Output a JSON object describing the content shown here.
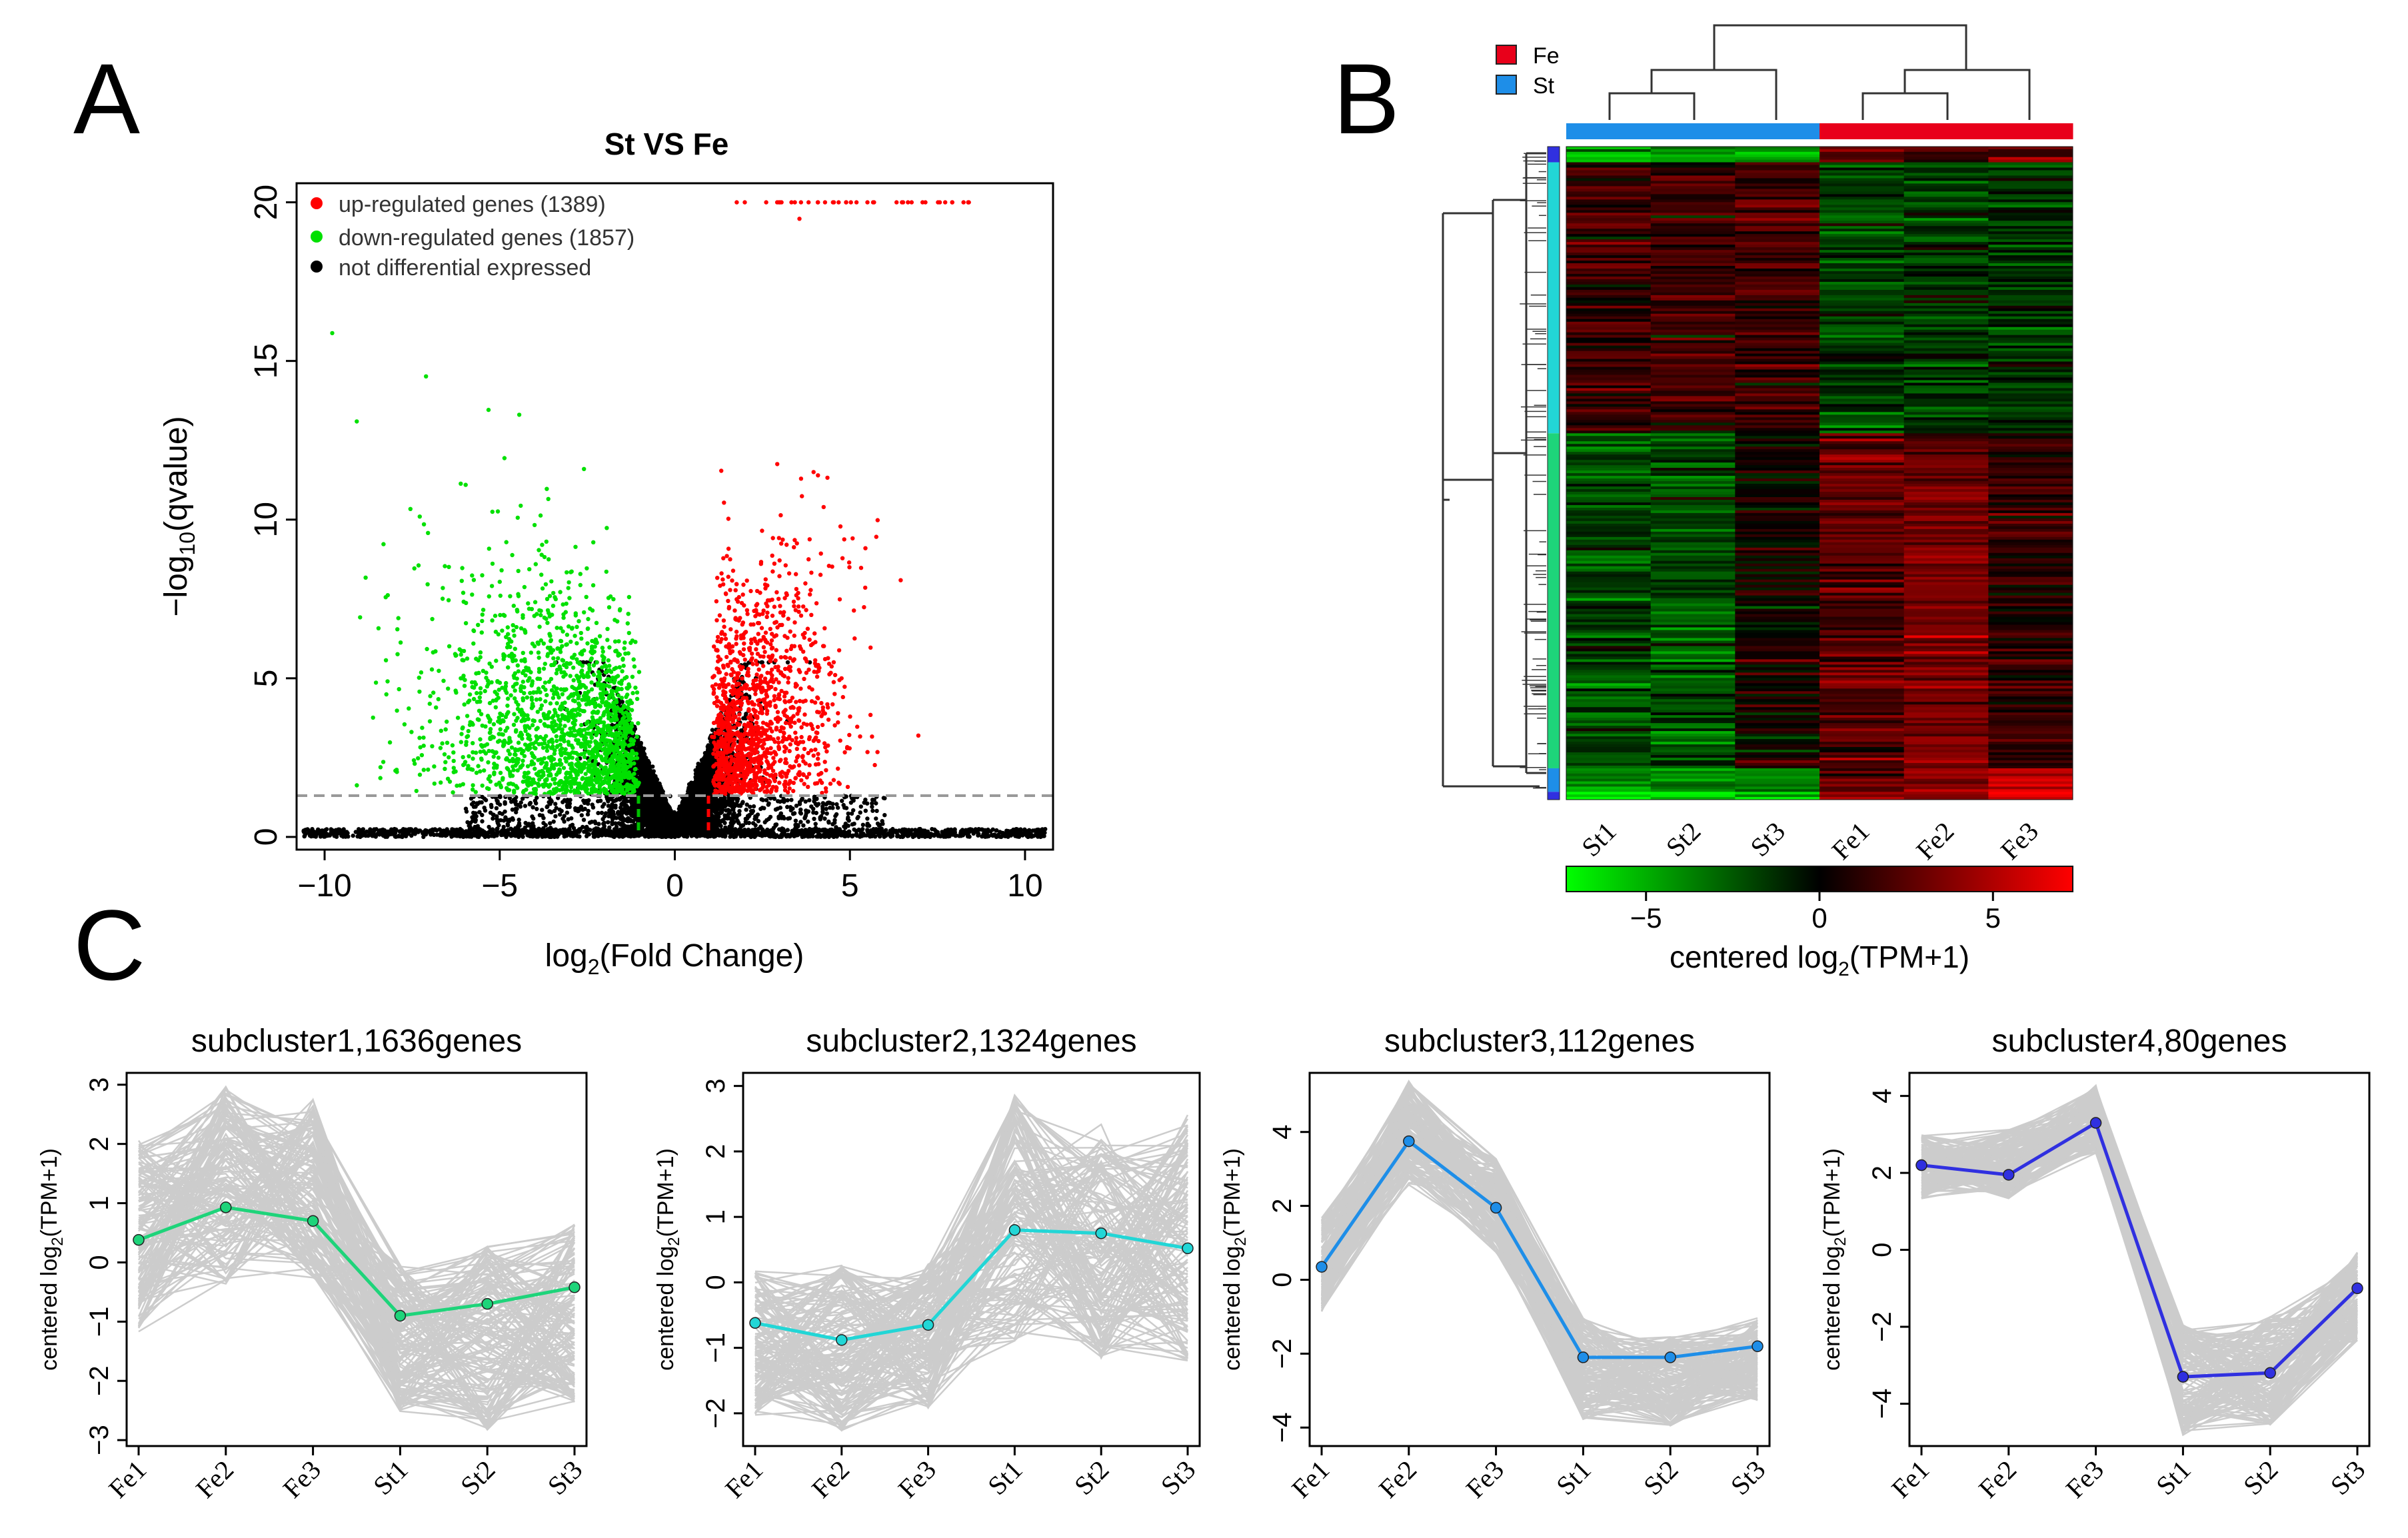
{
  "panel_labels": {
    "a": "A",
    "b": "B",
    "c": "C"
  },
  "colors": {
    "up": "#ff0000",
    "down": "#00e000",
    "ns": "#000000",
    "fe": "#e8001a",
    "st": "#1e8ee8",
    "grey": "#cccccc",
    "sub1": "#1ed47a",
    "sub2": "#22d6d6",
    "sub3": "#1e8ee8",
    "sub4": "#3030e0"
  },
  "volcano": {
    "title": "St VS Fe",
    "legend": [
      {
        "label": "up-regulated genes (1389)",
        "color": "#ff0000"
      },
      {
        "label": "down-regulated genes (1857)",
        "color": "#00e000"
      },
      {
        "label": "not differential expressed",
        "color": "#000000"
      }
    ],
    "xlabel_prefix": "log",
    "xlabel_sub": "2",
    "xlabel_suffix": "(Fold Change)",
    "ylabel_prefix": "−log",
    "ylabel_sub": "10",
    "ylabel_suffix": "(qvalue)",
    "xticks": [
      -10,
      -5,
      0,
      5,
      10
    ],
    "xtick_labels": [
      "−10",
      "−5",
      "0",
      "5",
      "10"
    ],
    "yticks": [
      0,
      5,
      10,
      15,
      20
    ],
    "xlim": [
      -10.8,
      10.8
    ],
    "ylim": [
      -0.4,
      20.6
    ],
    "fc_threshold": 1,
    "q_threshold": 1.3
  },
  "heatmap": {
    "legend": [
      {
        "label": "Fe",
        "color": "#e8001a"
      },
      {
        "label": "St",
        "color": "#1e8ee8"
      }
    ],
    "samples": [
      "St1",
      "St2",
      "St3",
      "Fe1",
      "Fe2",
      "Fe3"
    ],
    "groups": [
      "St",
      "St",
      "St",
      "Fe",
      "Fe",
      "Fe"
    ],
    "colorbar_ticks": [
      -5,
      0,
      5
    ],
    "colorbar_tick_labels": [
      "−5",
      "0",
      "5"
    ],
    "colorbar_range": [
      -7.3,
      7.3
    ],
    "colorbar_label": "centered log",
    "colorbar_label_sub": "2",
    "colorbar_label_suffix": "(TPM+1)",
    "row_blocks": [
      {
        "cluster": "sub4",
        "fraction": 0.024,
        "means": [
          -1.5,
          -1.3,
          -1.2,
          0.7,
          0.6,
          0.9
        ]
      },
      {
        "cluster": "sub2",
        "fraction": 0.415,
        "means": [
          0.5,
          0.5,
          0.5,
          -0.5,
          -0.5,
          -0.4
        ]
      },
      {
        "cluster": "sub1",
        "fraction": 0.513,
        "means": [
          -0.6,
          -0.7,
          0.1,
          0.7,
          1.0,
          0.4
        ]
      },
      {
        "cluster": "sub3",
        "fraction": 0.036,
        "means": [
          -1.2,
          -1.2,
          -1.0,
          0.8,
          1.1,
          1.5
        ]
      },
      {
        "cluster": "sub4",
        "fraction": 0.012,
        "means": [
          -1.8,
          -1.8,
          -1.6,
          1.3,
          1.0,
          2.0
        ]
      }
    ]
  },
  "line_ylabel_prefix": "centered log",
  "line_ylabel_sub": "2",
  "line_ylabel_suffix": "(TPM+1)",
  "chart_data": [
    {
      "type": "scatter",
      "title": "St VS Fe",
      "xlabel": "log2(Fold Change)",
      "ylabel": "-log10(qvalue)",
      "xlim": [
        -10.8,
        10.8
      ],
      "ylim": [
        -0.4,
        20.6
      ],
      "series": [
        {
          "name": "up-regulated genes (1389)",
          "count": 1389
        },
        {
          "name": "down-regulated genes (1857)",
          "count": 1857
        },
        {
          "name": "not differential expressed"
        }
      ]
    },
    {
      "type": "heatmap",
      "columns": [
        "St1",
        "St2",
        "St3",
        "Fe1",
        "Fe2",
        "Fe3"
      ],
      "value_label": "centered log2(TPM+1)",
      "range": [
        -7.3,
        7.3
      ]
    },
    {
      "type": "line",
      "title": "subcluster1,1636genes",
      "categories": [
        "Fe1",
        "Fe2",
        "Fe3",
        "St1",
        "St2",
        "St3"
      ],
      "series": [
        {
          "name": "mean",
          "values": [
            0.38,
            0.93,
            0.7,
            -0.9,
            -0.7,
            -0.42
          ]
        }
      ],
      "yticks": [
        -3,
        -2,
        -1,
        0,
        1,
        2,
        3
      ],
      "ylim": [
        -3.1,
        3.2
      ],
      "band": {
        "upper": [
          2.1,
          3.0,
          2.8,
          0.0,
          0.3,
          0.7
        ],
        "lower": [
          -1.2,
          -0.4,
          -0.3,
          -2.6,
          -2.9,
          -2.4
        ]
      },
      "ylabel": "centered log2(TPM+1)"
    },
    {
      "type": "line",
      "title": "subcluster2,1324genes",
      "categories": [
        "Fe1",
        "Fe2",
        "Fe3",
        "St1",
        "St2",
        "St3"
      ],
      "series": [
        {
          "name": "mean",
          "values": [
            -0.62,
            -0.88,
            -0.65,
            0.8,
            0.75,
            0.52
          ]
        }
      ],
      "yticks": [
        -2,
        -1,
        0,
        1,
        2,
        3
      ],
      "ylim": [
        -2.5,
        3.2
      ],
      "band": {
        "upper": [
          0.2,
          0.3,
          0.3,
          2.9,
          2.5,
          2.6
        ],
        "lower": [
          -2.1,
          -2.3,
          -2.0,
          -1.0,
          -1.2,
          -1.3
        ]
      },
      "ylabel": "centered log2(TPM+1)"
    },
    {
      "type": "line",
      "title": "subcluster3,112genes",
      "categories": [
        "Fe1",
        "Fe2",
        "Fe3",
        "St1",
        "St2",
        "St3"
      ],
      "series": [
        {
          "name": "mean",
          "values": [
            0.35,
            3.75,
            1.95,
            -2.1,
            -2.1,
            -1.8
          ]
        }
      ],
      "yticks": [
        -4,
        -2,
        0,
        2,
        4
      ],
      "ylim": [
        -4.5,
        5.6
      ],
      "band": {
        "upper": [
          1.7,
          5.4,
          3.3,
          -1.0,
          -1.5,
          -1.0
        ],
        "lower": [
          -0.9,
          2.5,
          0.7,
          -3.8,
          -4.0,
          -3.3
        ]
      },
      "ylabel": "centered log2(TPM+1)"
    },
    {
      "type": "line",
      "title": "subcluster4,80genes",
      "categories": [
        "Fe1",
        "Fe2",
        "Fe3",
        "St1",
        "St2",
        "St3"
      ],
      "series": [
        {
          "name": "mean",
          "values": [
            2.2,
            1.95,
            3.3,
            -3.3,
            -3.2,
            -1.0
          ]
        }
      ],
      "yticks": [
        -4,
        -2,
        0,
        2,
        4
      ],
      "ylim": [
        -5.1,
        4.6
      ],
      "band": {
        "upper": [
          3.0,
          3.2,
          4.3,
          -1.9,
          -1.7,
          0.0
        ],
        "lower": [
          1.3,
          1.3,
          2.5,
          -4.9,
          -4.6,
          -2.4
        ]
      },
      "ylabel": "centered log2(TPM+1)"
    }
  ]
}
